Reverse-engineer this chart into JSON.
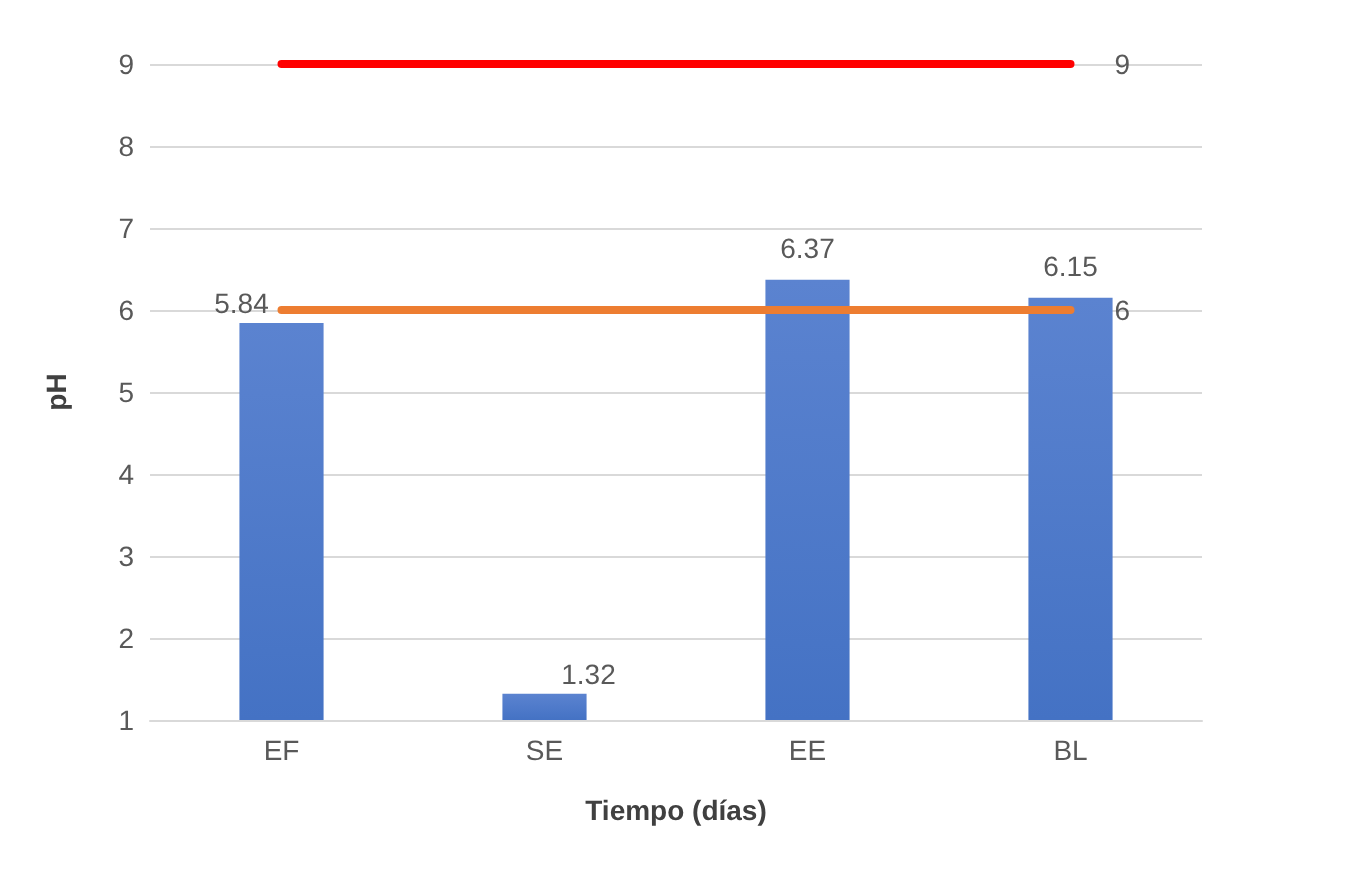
{
  "chart_data": {
    "type": "bar",
    "xlabel": "Tiempo (días)",
    "ylabel": "pH",
    "categories": [
      "EF",
      "SE",
      "EE",
      "BL"
    ],
    "series": [
      {
        "color": "#4472c4",
        "values": [
          5.84,
          1.32,
          6.37,
          6.15
        ],
        "value_labels": [
          "5.84",
          "1.32",
          "6.37",
          "6.15"
        ]
      },
      {
        "type": "line",
        "color": "#ff0000",
        "values": [
          9,
          9,
          9,
          9
        ],
        "value_labels": [
          null,
          null,
          null,
          "9"
        ]
      },
      {
        "type": "line",
        "color": "#ed7d31",
        "values": [
          6,
          6,
          6,
          6
        ],
        "value_labels": [
          null,
          null,
          null,
          "6"
        ]
      }
    ],
    "ylim": [
      1,
      9
    ],
    "yticks": [
      1,
      2,
      3,
      4,
      5,
      6,
      7,
      8,
      9
    ],
    "grid": "y",
    "marker": "none",
    "line_style": "solid"
  }
}
